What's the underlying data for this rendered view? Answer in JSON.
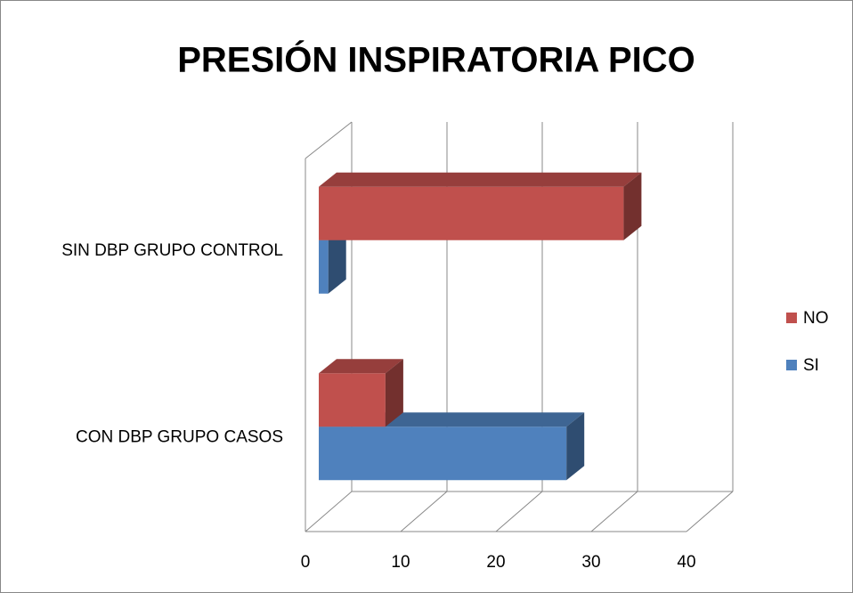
{
  "chart_data": {
    "type": "bar3d_horizontal",
    "title": "PRESIÓN INSPIRATORIA PICO",
    "categories": [
      "SIN DBP GRUPO CONTROL",
      "CON DBP GRUPO CASOS"
    ],
    "series": [
      {
        "name": "NO",
        "color": "#c0504d",
        "values": [
          32,
          7
        ]
      },
      {
        "name": "SI",
        "color": "#4f81bd",
        "values": [
          1,
          26
        ]
      }
    ],
    "xlim": [
      0,
      40
    ],
    "xticks": [
      0,
      10,
      20,
      30,
      40
    ],
    "grid": true,
    "legend": "right"
  }
}
